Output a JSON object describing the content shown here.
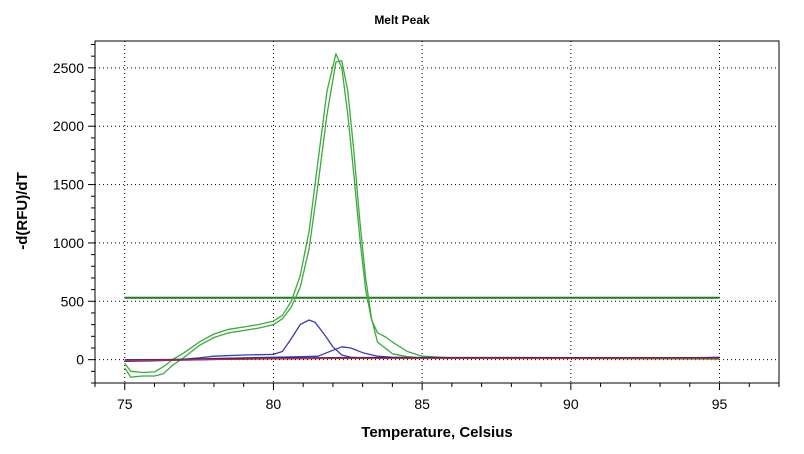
{
  "chart_data": {
    "type": "line",
    "title": "Melt Peak",
    "xlabel": "Temperature, Celsius",
    "ylabel": "-d(RFU)/dT",
    "xlim": [
      74,
      97
    ],
    "ylim": [
      -200,
      2730
    ],
    "x_ticks": [
      75,
      80,
      85,
      90,
      95
    ],
    "y_ticks": [
      0,
      500,
      1000,
      1500,
      2000,
      2500
    ],
    "grid": true,
    "legend": "none",
    "threshold": {
      "value": 530,
      "color": "#1e7b1e"
    },
    "series": [
      {
        "color": "#3cab3c",
        "points": [
          [
            75,
            -70
          ],
          [
            75.2,
            -150
          ],
          [
            75.6,
            -140
          ],
          [
            76,
            -140
          ],
          [
            76.3,
            -120
          ],
          [
            76.6,
            -50
          ],
          [
            77,
            20
          ],
          [
            77.5,
            120
          ],
          [
            78,
            190
          ],
          [
            78.5,
            230
          ],
          [
            79,
            250
          ],
          [
            79.5,
            270
          ],
          [
            80,
            300
          ],
          [
            80.3,
            350
          ],
          [
            80.6,
            450
          ],
          [
            80.9,
            620
          ],
          [
            81.2,
            950
          ],
          [
            81.5,
            1500
          ],
          [
            81.8,
            2100
          ],
          [
            82.1,
            2550
          ],
          [
            82.3,
            2560
          ],
          [
            82.5,
            2300
          ],
          [
            82.7,
            1800
          ],
          [
            82.9,
            1200
          ],
          [
            83.1,
            700
          ],
          [
            83.3,
            350
          ],
          [
            83.5,
            150
          ],
          [
            84,
            50
          ],
          [
            84.5,
            25
          ],
          [
            85,
            15
          ],
          [
            86,
            12
          ],
          [
            88,
            10
          ],
          [
            90,
            10
          ],
          [
            92,
            8
          ],
          [
            94,
            6
          ],
          [
            95,
            5
          ]
        ]
      },
      {
        "color": "#3cab3c",
        "points": [
          [
            75,
            -30
          ],
          [
            75.2,
            -100
          ],
          [
            75.6,
            -110
          ],
          [
            76,
            -105
          ],
          [
            76.3,
            -60
          ],
          [
            76.6,
            0
          ],
          [
            77,
            60
          ],
          [
            77.5,
            150
          ],
          [
            78,
            220
          ],
          [
            78.5,
            260
          ],
          [
            79,
            280
          ],
          [
            79.5,
            300
          ],
          [
            80,
            330
          ],
          [
            80.3,
            380
          ],
          [
            80.6,
            500
          ],
          [
            80.9,
            720
          ],
          [
            81.2,
            1100
          ],
          [
            81.5,
            1700
          ],
          [
            81.8,
            2300
          ],
          [
            82.1,
            2620
          ],
          [
            82.3,
            2500
          ],
          [
            82.5,
            2100
          ],
          [
            82.7,
            1600
          ],
          [
            82.9,
            1050
          ],
          [
            83.1,
            600
          ],
          [
            83.3,
            340
          ],
          [
            83.5,
            230
          ],
          [
            83.8,
            190
          ],
          [
            84,
            150
          ],
          [
            84.5,
            70
          ],
          [
            85,
            30
          ],
          [
            86,
            15
          ],
          [
            88,
            12
          ],
          [
            90,
            12
          ],
          [
            92,
            10
          ],
          [
            94,
            8
          ],
          [
            95,
            5
          ]
        ]
      },
      {
        "color": "#3a3ab8",
        "points": [
          [
            75,
            -10
          ],
          [
            76,
            -5
          ],
          [
            77,
            5
          ],
          [
            77.5,
            15
          ],
          [
            78,
            30
          ],
          [
            79,
            40
          ],
          [
            80,
            45
          ],
          [
            80.3,
            70
          ],
          [
            80.6,
            180
          ],
          [
            80.9,
            300
          ],
          [
            81.2,
            340
          ],
          [
            81.4,
            320
          ],
          [
            81.7,
            220
          ],
          [
            82,
            110
          ],
          [
            82.3,
            40
          ],
          [
            82.6,
            20
          ],
          [
            83,
            15
          ],
          [
            84,
            15
          ],
          [
            85,
            15
          ],
          [
            86,
            15
          ],
          [
            88,
            12
          ],
          [
            89,
            18
          ],
          [
            90,
            12
          ],
          [
            92,
            12
          ],
          [
            94,
            12
          ],
          [
            95,
            18
          ]
        ]
      },
      {
        "color": "#3a3ab8",
        "points": [
          [
            75,
            -15
          ],
          [
            76,
            -10
          ],
          [
            77,
            0
          ],
          [
            78,
            10
          ],
          [
            79,
            15
          ],
          [
            80,
            20
          ],
          [
            81,
            25
          ],
          [
            81.5,
            30
          ],
          [
            82,
            80
          ],
          [
            82.3,
            110
          ],
          [
            82.6,
            100
          ],
          [
            83,
            60
          ],
          [
            83.5,
            30
          ],
          [
            84,
            20
          ],
          [
            85,
            15
          ],
          [
            86,
            15
          ],
          [
            88,
            14
          ],
          [
            90,
            14
          ],
          [
            92,
            14
          ],
          [
            94,
            14
          ],
          [
            95,
            20
          ]
        ]
      },
      {
        "color": "#1a1a8a",
        "points": [
          [
            75,
            -5
          ],
          [
            76,
            -3
          ],
          [
            77,
            0
          ],
          [
            78,
            5
          ],
          [
            79,
            8
          ],
          [
            80,
            10
          ],
          [
            81,
            12
          ],
          [
            82,
            14
          ],
          [
            83,
            15
          ],
          [
            84,
            15
          ],
          [
            85,
            15
          ],
          [
            86,
            15
          ],
          [
            88,
            15
          ],
          [
            90,
            14
          ],
          [
            92,
            14
          ],
          [
            94,
            14
          ],
          [
            95,
            15
          ]
        ]
      },
      {
        "color": "#c03030",
        "points": [
          [
            75,
            -8
          ],
          [
            76,
            -5
          ],
          [
            77,
            -2
          ],
          [
            78,
            2
          ],
          [
            79,
            5
          ],
          [
            80,
            8
          ],
          [
            81,
            10
          ],
          [
            82,
            12
          ],
          [
            83,
            12
          ],
          [
            84,
            12
          ],
          [
            85,
            12
          ],
          [
            86,
            12
          ],
          [
            88,
            12
          ],
          [
            90,
            12
          ],
          [
            92,
            12
          ],
          [
            94,
            12
          ],
          [
            95,
            12
          ]
        ]
      }
    ]
  }
}
